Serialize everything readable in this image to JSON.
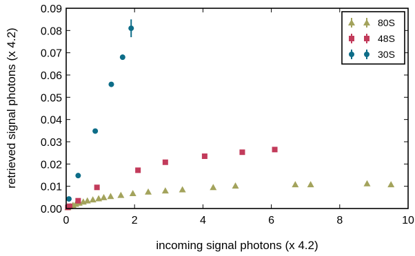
{
  "chart_data": {
    "type": "scatter",
    "title": "",
    "xlabel": "incoming signal photons (x 4.2)",
    "ylabel": "retrieved signal photons (x 4.2)",
    "xlim": [
      0,
      10
    ],
    "ylim": [
      0,
      0.09
    ],
    "xticks": [
      0,
      2,
      4,
      6,
      8,
      10
    ],
    "yticks": [
      0.0,
      0.01,
      0.02,
      0.03,
      0.04,
      0.05,
      0.06,
      0.07,
      0.08,
      0.09
    ],
    "x_tick_labels": [
      "0",
      "2",
      "4",
      "6",
      "8",
      "10"
    ],
    "y_tick_labels": [
      "0.00",
      "0.01",
      "0.02",
      "0.03",
      "0.04",
      "0.05",
      "0.06",
      "0.07",
      "0.08",
      "0.09"
    ],
    "grid": false,
    "legend_position": "top-right",
    "series": [
      {
        "name": "80S",
        "marker": "triangle",
        "color": "#a3a35c",
        "x": [
          0.05,
          0.12,
          0.2,
          0.28,
          0.38,
          0.5,
          0.62,
          0.78,
          0.95,
          1.1,
          1.3,
          1.6,
          1.95,
          2.4,
          2.9,
          3.4,
          4.3,
          4.95,
          6.7,
          7.15,
          8.8,
          9.5
        ],
        "y": [
          0.0005,
          0.001,
          0.0015,
          0.002,
          0.0025,
          0.003,
          0.0035,
          0.004,
          0.0045,
          0.005,
          0.0055,
          0.006,
          0.0068,
          0.0075,
          0.008,
          0.0085,
          0.0095,
          0.0102,
          0.0108,
          0.0108,
          0.0112,
          0.0108
        ],
        "yerr": [
          0,
          0,
          0,
          0,
          0,
          0,
          0,
          0,
          0,
          0,
          0,
          0,
          0,
          0,
          0,
          0,
          0,
          0,
          0,
          0,
          0.0005,
          0
        ]
      },
      {
        "name": "48S",
        "marker": "square",
        "color": "#c23b5b",
        "x": [
          0.05,
          0.1,
          0.35,
          0.9,
          2.1,
          2.9,
          4.05,
          5.15,
          6.1
        ],
        "y": [
          0.0005,
          0.001,
          0.0035,
          0.0095,
          0.0172,
          0.0208,
          0.0235,
          0.0253,
          0.0265
        ],
        "yerr": [
          0,
          0,
          0,
          0,
          0,
          0,
          0,
          0,
          0
        ]
      },
      {
        "name": "30S",
        "marker": "circle",
        "color": "#0d6d88",
        "x": [
          0.08,
          0.35,
          0.85,
          1.32,
          1.65,
          1.9
        ],
        "y": [
          0.0043,
          0.0148,
          0.0348,
          0.0558,
          0.068,
          0.081
        ],
        "yerr": [
          0,
          0,
          0,
          0,
          0.0012,
          0.004
        ]
      }
    ]
  }
}
